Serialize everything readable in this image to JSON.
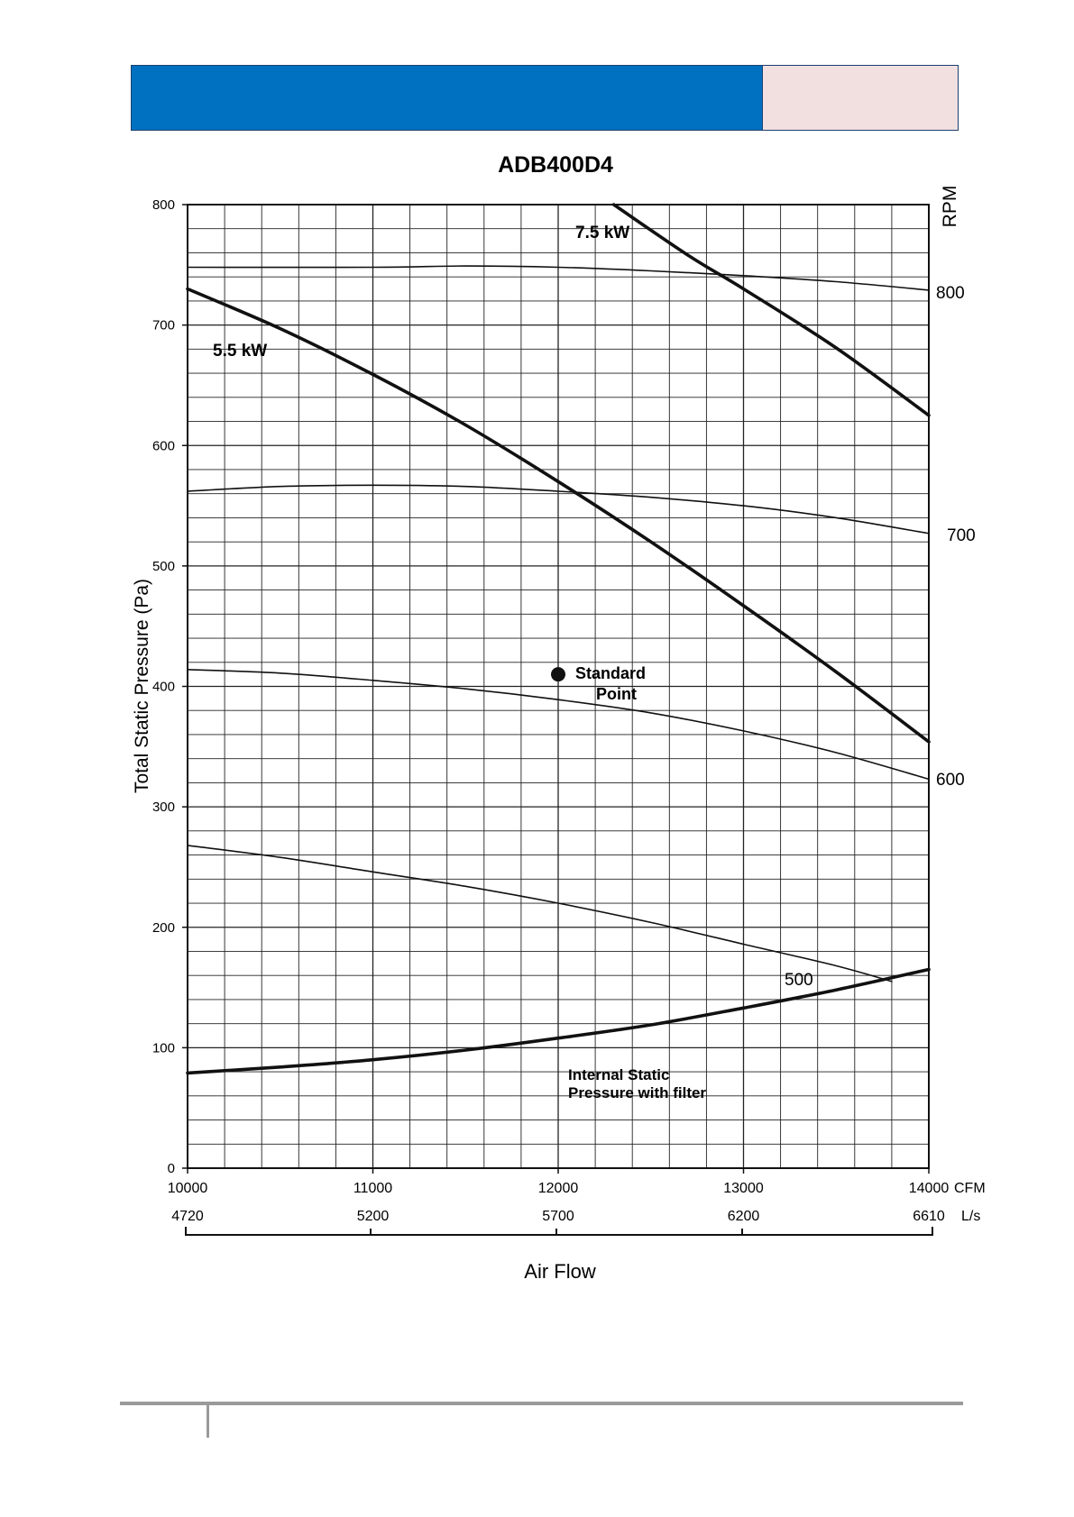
{
  "colors": {
    "header_blue": "#0070c0",
    "header_pink": "#f2e0e1"
  },
  "chart_data": {
    "type": "line",
    "title": "ADB400D4",
    "ylabel": "Total Static Pressure (Pa)",
    "xlabel": "Air Flow",
    "right_axis_label": "RPM",
    "xlim": [
      10000,
      14000
    ],
    "ylim": [
      0,
      800
    ],
    "grid": true,
    "x_units": "CFM",
    "x2_units": "L/s",
    "x_ticks": [
      {
        "value": 10000,
        "label": "10000"
      },
      {
        "value": 11000,
        "label": "11000"
      },
      {
        "value": 12000,
        "label": "12000"
      },
      {
        "value": 13000,
        "label": "13000"
      },
      {
        "value": 14000,
        "label": "14000"
      }
    ],
    "x2_ticks": [
      {
        "value": 10000,
        "label": "4720"
      },
      {
        "value": 11000,
        "label": "5200"
      },
      {
        "value": 12000,
        "label": "5700"
      },
      {
        "value": 13000,
        "label": "6200"
      },
      {
        "value": 14000,
        "label": "6610"
      }
    ],
    "y_ticks": [
      "0",
      "100",
      "200",
      "300",
      "400",
      "500",
      "600",
      "700",
      "800"
    ],
    "series": [
      {
        "name": "800",
        "kind": "rpm",
        "label": "800",
        "x": [
          10000,
          11000,
          11500,
          12000,
          12500,
          13000,
          13500,
          14000
        ],
        "y": [
          748,
          748,
          749,
          748,
          745,
          741,
          736,
          729
        ]
      },
      {
        "name": "700",
        "kind": "rpm",
        "label": "700",
        "x": [
          10000,
          10500,
          11000,
          11500,
          12000,
          12500,
          13000,
          13500,
          14000
        ],
        "y": [
          562,
          566,
          567,
          566,
          562,
          557,
          550,
          540,
          527
        ]
      },
      {
        "name": "600",
        "kind": "rpm",
        "label": "600",
        "x": [
          10000,
          10500,
          11000,
          11500,
          12000,
          12500,
          13000,
          13500,
          14000
        ],
        "y": [
          414,
          411,
          405,
          398,
          389,
          378,
          363,
          345,
          323
        ]
      },
      {
        "name": "500",
        "kind": "rpm",
        "label": "500",
        "x": [
          10000,
          10500,
          11000,
          11500,
          12000,
          12500,
          13000,
          13500,
          13800
        ],
        "y": [
          268,
          258,
          246,
          234,
          220,
          204,
          186,
          168,
          155
        ]
      },
      {
        "name": "5.5 kW",
        "kind": "power",
        "label": "5.5 kW",
        "x": [
          10000,
          10500,
          11000,
          11500,
          12000,
          12500,
          13000,
          13500,
          14000
        ],
        "y": [
          730,
          697,
          659,
          617,
          570,
          520,
          467,
          412,
          354
        ]
      },
      {
        "name": "7.5 kW",
        "kind": "power",
        "label": "7.5 kW",
        "x": [
          12300,
          12700,
          13000,
          13500,
          14000
        ],
        "y": [
          800,
          758,
          730,
          681,
          625
        ]
      },
      {
        "name": "Internal Static Pressure with filter",
        "kind": "system",
        "label_lines": [
          "Internal Static",
          "Pressure with filter"
        ],
        "x": [
          10000,
          10500,
          11000,
          11500,
          12000,
          12500,
          13000,
          13500,
          14000
        ],
        "y": [
          79,
          84,
          90,
          98,
          108,
          119,
          133,
          148,
          165
        ]
      }
    ],
    "annotations": [
      {
        "text_lines": [
          "Standard",
          "Point"
        ],
        "x": 12000,
        "y": 410,
        "marker": "dot"
      }
    ]
  }
}
